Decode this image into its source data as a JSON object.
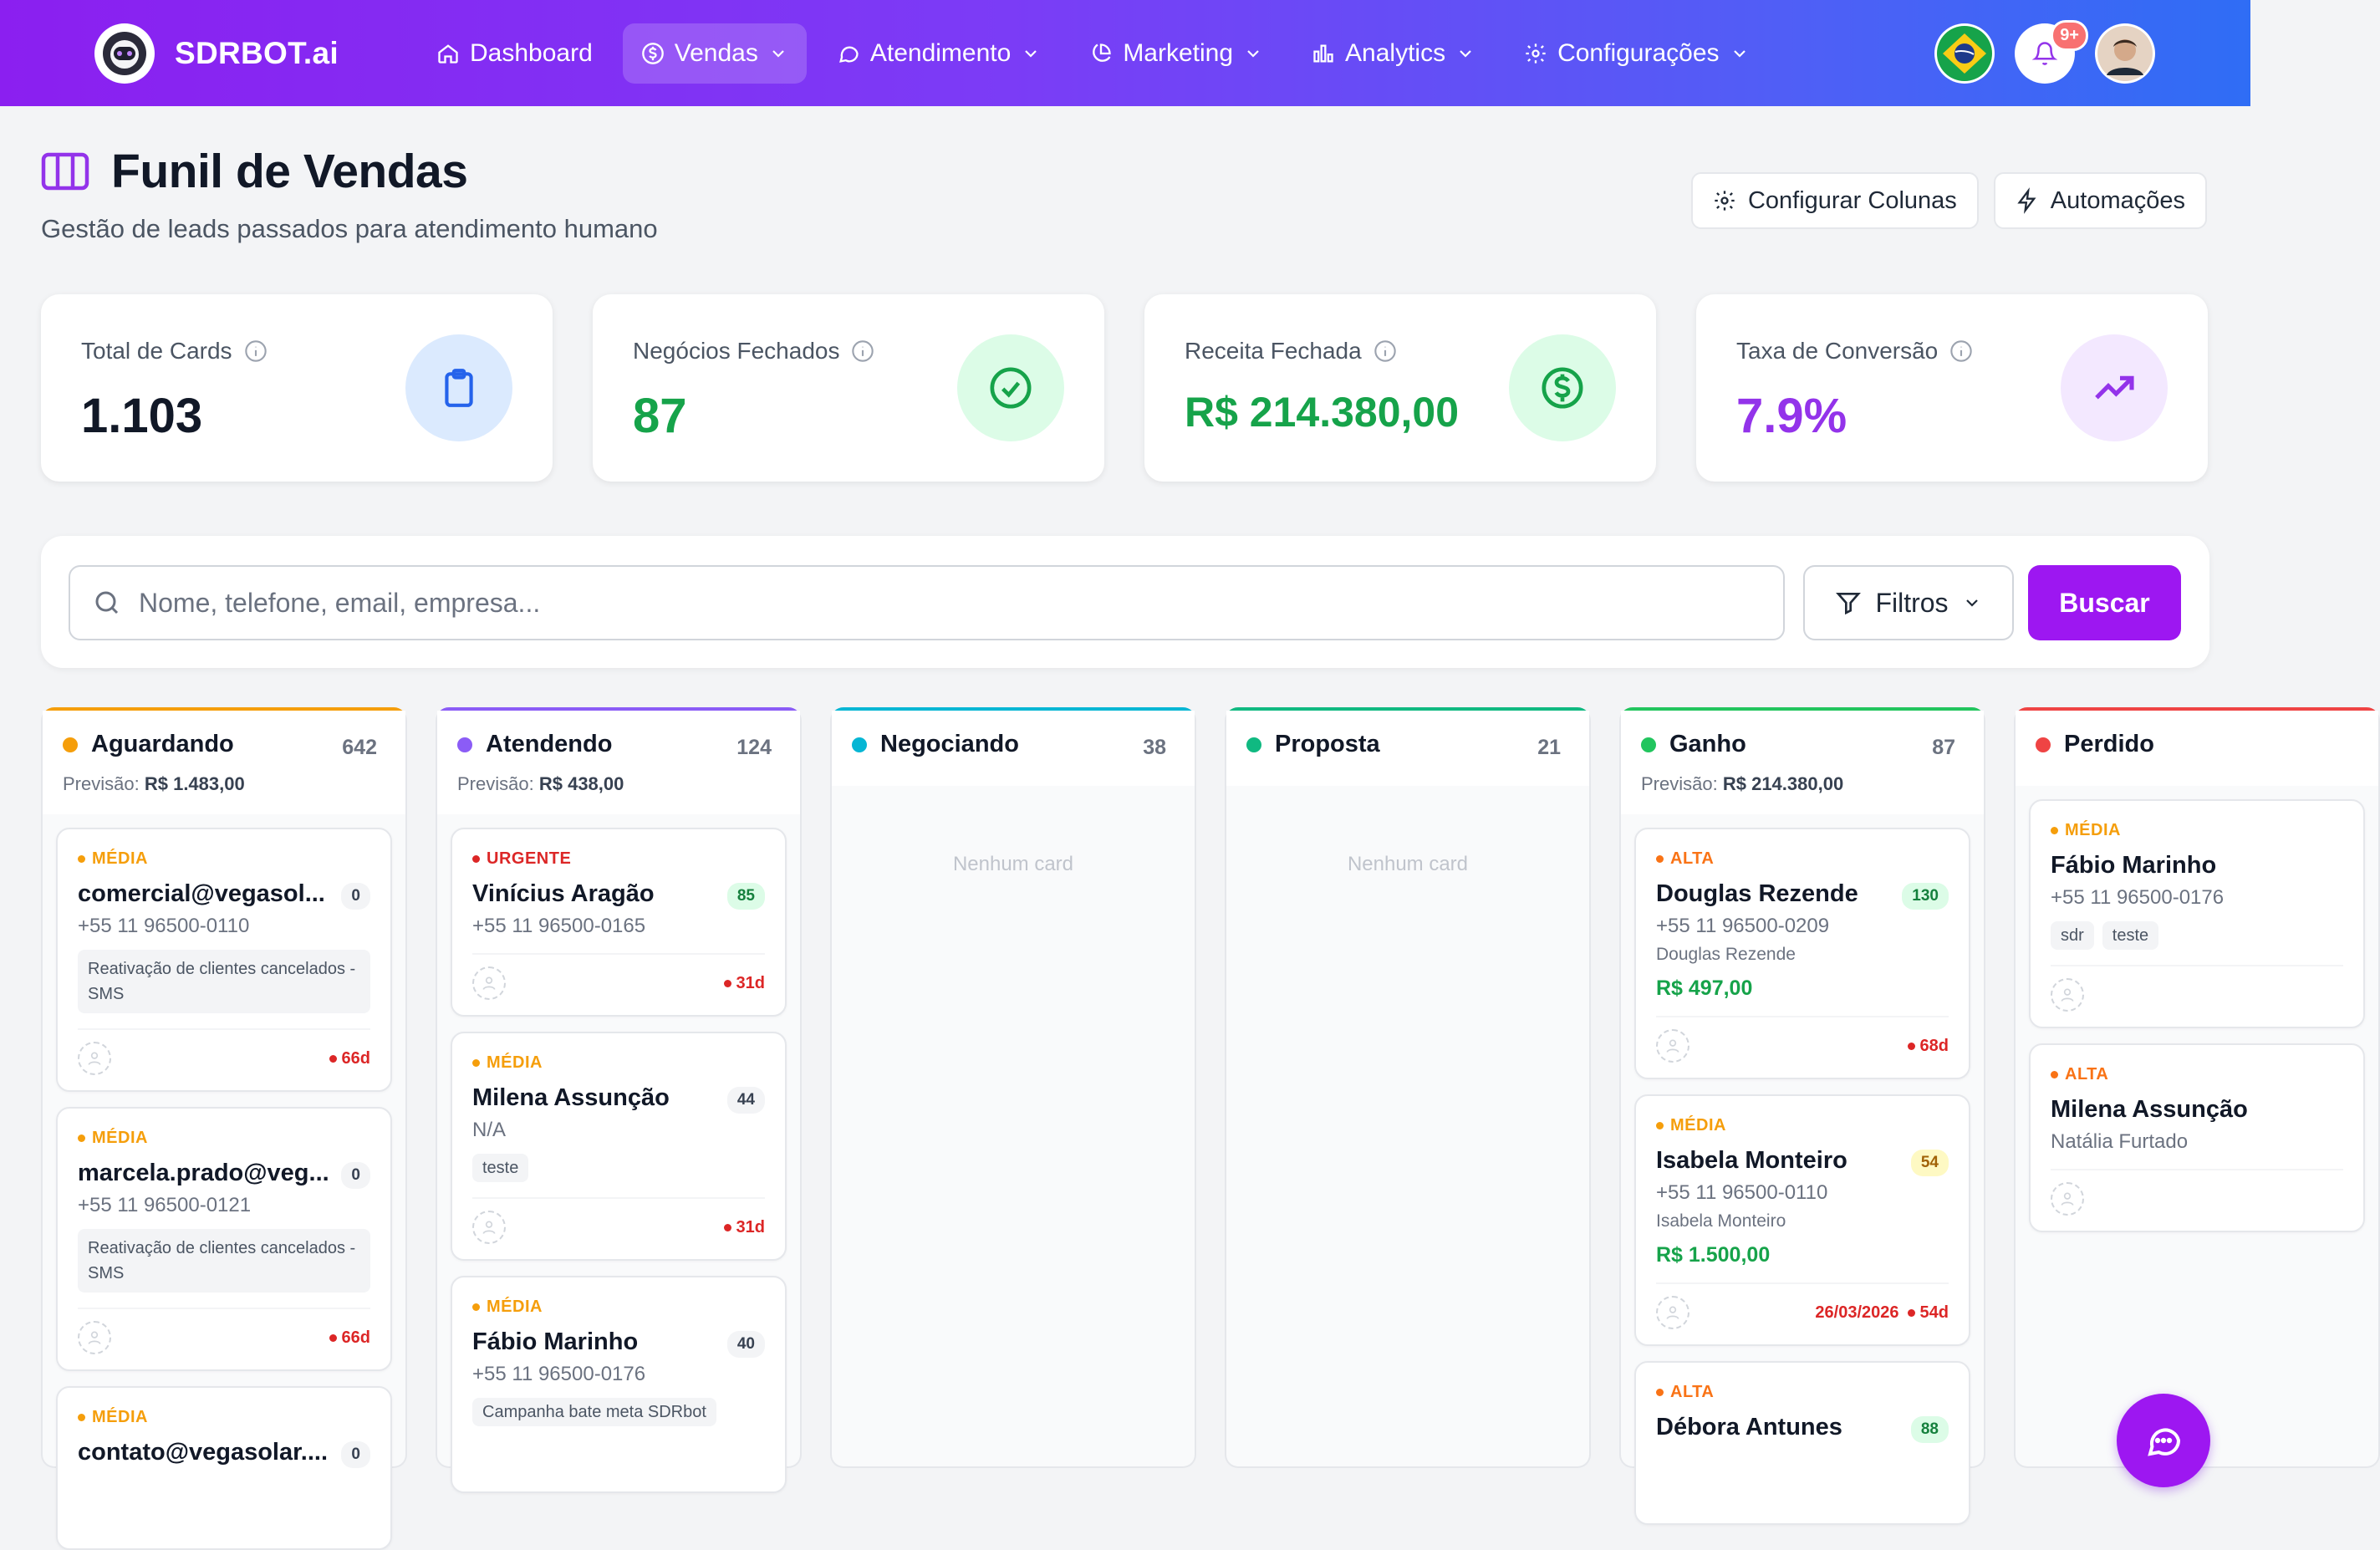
{
  "app": {
    "name": "SDRBOT.ai"
  },
  "nav": {
    "items": [
      {
        "label": "Dashboard",
        "icon": "home-icon",
        "active": false
      },
      {
        "label": "Vendas",
        "icon": "dollar-circle-icon",
        "active": true
      },
      {
        "label": "Atendimento",
        "icon": "chat-bubble-icon",
        "active": false
      },
      {
        "label": "Marketing",
        "icon": "pie-chart-icon",
        "active": false
      },
      {
        "label": "Analytics",
        "icon": "bar-chart-icon",
        "active": false
      },
      {
        "label": "Configurações",
        "icon": "gear-icon",
        "active": false
      }
    ],
    "notifications_badge": "9+"
  },
  "page": {
    "title": "Funil de Vendas",
    "subtitle": "Gestão de leads passados para atendimento humano",
    "configure_columns_label": "Configurar Colunas",
    "automations_label": "Automações"
  },
  "stats": [
    {
      "label": "Total de Cards",
      "value": "1.103",
      "color": "#111827",
      "icon": "clipboard-icon",
      "icon_bg": "#dbeafe",
      "icon_color": "#2563eb"
    },
    {
      "label": "Negócios Fechados",
      "value": "87",
      "color": "#16a34a",
      "icon": "check-circle-icon",
      "icon_bg": "#dcfce7",
      "icon_color": "#16a34a"
    },
    {
      "label": "Receita Fechada",
      "value": "R$ 214.380,00",
      "color": "#16a34a",
      "icon": "dollar-circle-icon",
      "icon_bg": "#dcfce7",
      "icon_color": "#16a34a"
    },
    {
      "label": "Taxa de Conversão",
      "value": "7.9%",
      "color": "#9333ea",
      "icon": "trending-up-icon",
      "icon_bg": "#f3e8ff",
      "icon_color": "#9333ea"
    }
  ],
  "search": {
    "placeholder": "Nome, telefone, email, empresa...",
    "value": "",
    "filters_label": "Filtros",
    "search_label": "Buscar"
  },
  "columns": [
    {
      "title": "Aguardando",
      "count": "642",
      "color": "#f59e0b",
      "forecast_label": "Previsão:",
      "forecast": "R$ 1.483,00",
      "cards": [
        {
          "priority": "MÉDIA",
          "name": "comercial@vegasol...",
          "score": "0",
          "phone": "+55 11 96500-0110",
          "tag": "Reativação de clientes cancelados - SMS",
          "days": "66d"
        },
        {
          "priority": "MÉDIA",
          "name": "marcela.prado@veg...",
          "score": "0",
          "phone": "+55 11 96500-0121",
          "tag": "Reativação de clientes cancelados - SMS",
          "days": "66d"
        },
        {
          "priority": "MÉDIA",
          "name": "contato@vegasolar....",
          "score": "0"
        }
      ]
    },
    {
      "title": "Atendendo",
      "count": "124",
      "color": "#8b5cf6",
      "forecast_label": "Previsão:",
      "forecast": "R$ 438,00",
      "cards": [
        {
          "priority": "URGENTE",
          "name": "Vinícius Aragão",
          "score": "85",
          "phone": "+55 11 96500-0165",
          "days": "31d"
        },
        {
          "priority": "MÉDIA",
          "name": "Milena Assunção",
          "score": "44",
          "phone": "N/A",
          "tag": "teste",
          "days": "31d"
        },
        {
          "priority": "MÉDIA",
          "name": "Fábio Marinho",
          "score": "40",
          "phone": "+55 11 96500-0176",
          "tag": "Campanha bate meta SDRbot"
        }
      ]
    },
    {
      "title": "Negociando",
      "count": "38",
      "color": "#06b6d4",
      "empty": "Nenhum card"
    },
    {
      "title": "Proposta",
      "count": "21",
      "color": "#10b981",
      "empty": "Nenhum card"
    },
    {
      "title": "Ganho",
      "count": "87",
      "color": "#22c55e",
      "forecast_label": "Previsão:",
      "forecast": "R$ 214.380,00",
      "cards": [
        {
          "priority": "ALTA",
          "name": "Douglas Rezende",
          "score": "130",
          "phone": "+55 11 96500-0209",
          "contact": "Douglas Rezende",
          "value": "R$ 497,00",
          "days": "68d"
        },
        {
          "priority": "MÉDIA",
          "name": "Isabela Monteiro",
          "score": "54",
          "phone": "+55 11 96500-0110",
          "contact": "Isabela Monteiro",
          "value": "R$ 1.500,00",
          "due": "26/03/2026",
          "days": "54d"
        },
        {
          "priority": "ALTA",
          "name": "Débora Antunes",
          "score": "88"
        }
      ]
    },
    {
      "title": "Perdido",
      "color": "#ef4444",
      "cards": [
        {
          "priority": "MÉDIA",
          "name": "Fábio Marinho",
          "phone": "+55 11 96500-0176",
          "tags": [
            "sdr",
            "teste"
          ]
        },
        {
          "priority": "ALTA",
          "name": "Milena Assunção",
          "contact": "Natália Furtado"
        }
      ]
    }
  ],
  "chat_fab": {
    "icon": "chat-bubble-icon"
  }
}
